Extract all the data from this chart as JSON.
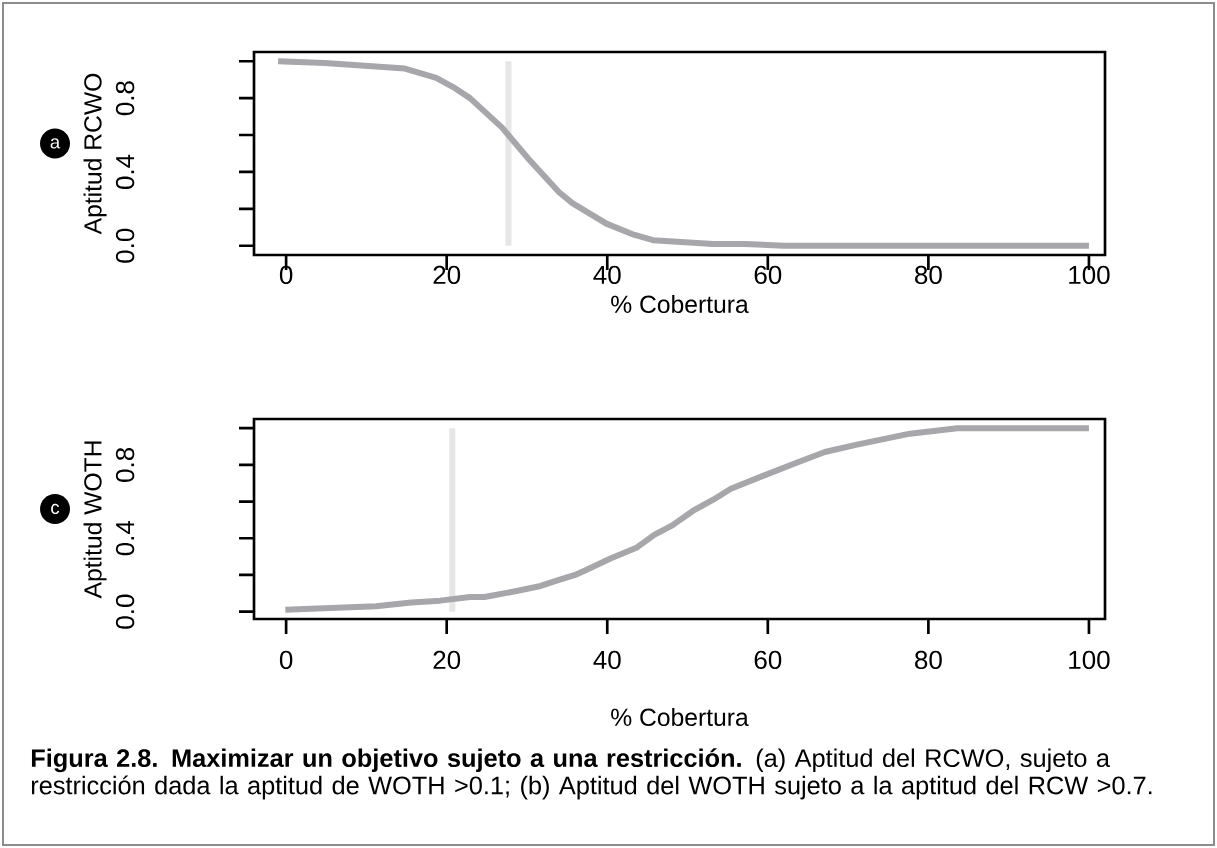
{
  "chart_data": [
    {
      "type": "line",
      "xlabel": "% Cobertura",
      "ylabel": "Aptitud RCWO",
      "annotations": [
        "a"
      ],
      "x": [
        -1,
        4.8,
        14.8,
        18.7,
        20.8,
        22.9,
        26.9,
        30.2,
        34.0,
        35.7,
        39.9,
        43.3,
        45.7,
        53.2,
        57.1,
        62,
        100
      ],
      "series": [
        {
          "color": "#a7a6ab",
          "values": [
            1.0,
            0.99,
            0.96,
            0.91,
            0.86,
            0.8,
            0.64,
            0.47,
            0.29,
            0.23,
            0.12,
            0.06,
            0.03,
            0.01,
            0.01,
            0.0,
            0.0
          ]
        }
      ],
      "ref_lines": [
        {
          "axis": "x",
          "value": 27.7,
          "color": "#e6e6e6"
        }
      ],
      "xlim": [
        -4,
        102
      ],
      "ylim": [
        -0.05,
        1.05
      ],
      "xticks": [
        0,
        20,
        40,
        60,
        80,
        100
      ],
      "yticks": [
        {
          "value": 0,
          "label": "0.0"
        },
        {
          "value": 0.2,
          "label": null
        },
        {
          "value": 0.4,
          "label": "0.4"
        },
        {
          "value": 0.6,
          "label": null
        },
        {
          "value": 0.8,
          "label": "0.8"
        },
        {
          "value": 1.0,
          "label": null
        }
      ],
      "grid": false,
      "marker": "none",
      "line_style": "solid"
    },
    {
      "type": "line",
      "xlabel": "% Cobertura",
      "ylabel": "Aptitud WOTH",
      "annotations": [
        "c",
        "**Figura 2.8. Maximizar un objetivo sujeto a una restricción.** (a) Aptitud del RCWO, sujeto a restricción dada la aptitud de WOTH >0.1; (b) Aptitud del WOTH sujeto a la aptitud del RCW >0.7."
      ],
      "x": [
        -0.1,
        11.2,
        15.6,
        19.2,
        22.9,
        24.7,
        28.4,
        31.7,
        33.8,
        36.0,
        37.5,
        40.4,
        43.7,
        45.9,
        48.1,
        50.7,
        53.2,
        55.4,
        59.4,
        63.5,
        67.1,
        71.1,
        77.7,
        83.6,
        87.2,
        93.8,
        100
      ],
      "series": [
        {
          "color": "#a7a6ab",
          "values": [
            0.01,
            0.03,
            0.05,
            0.06,
            0.08,
            0.08,
            0.11,
            0.14,
            0.17,
            0.2,
            0.23,
            0.29,
            0.35,
            0.42,
            0.47,
            0.55,
            0.61,
            0.67,
            0.74,
            0.81,
            0.87,
            0.91,
            0.97,
            1.0,
            1.0,
            1.0,
            1.0
          ]
        }
      ],
      "ref_lines": [
        {
          "axis": "x",
          "value": 20.7,
          "color": "#e6e6e6"
        }
      ],
      "xlim": [
        -4,
        102
      ],
      "ylim": [
        -0.04,
        1.05
      ],
      "xticks": [
        0,
        20,
        40,
        60,
        80,
        100
      ],
      "yticks": [
        {
          "value": 0,
          "label": "0.0"
        },
        {
          "value": 0.2,
          "label": null
        },
        {
          "value": 0.4,
          "label": "0.4"
        },
        {
          "value": 0.6,
          "label": null
        },
        {
          "value": 0.8,
          "label": "0.8"
        },
        {
          "value": 1.0,
          "label": null
        }
      ],
      "grid": false,
      "marker": "none",
      "line_style": "solid"
    }
  ]
}
